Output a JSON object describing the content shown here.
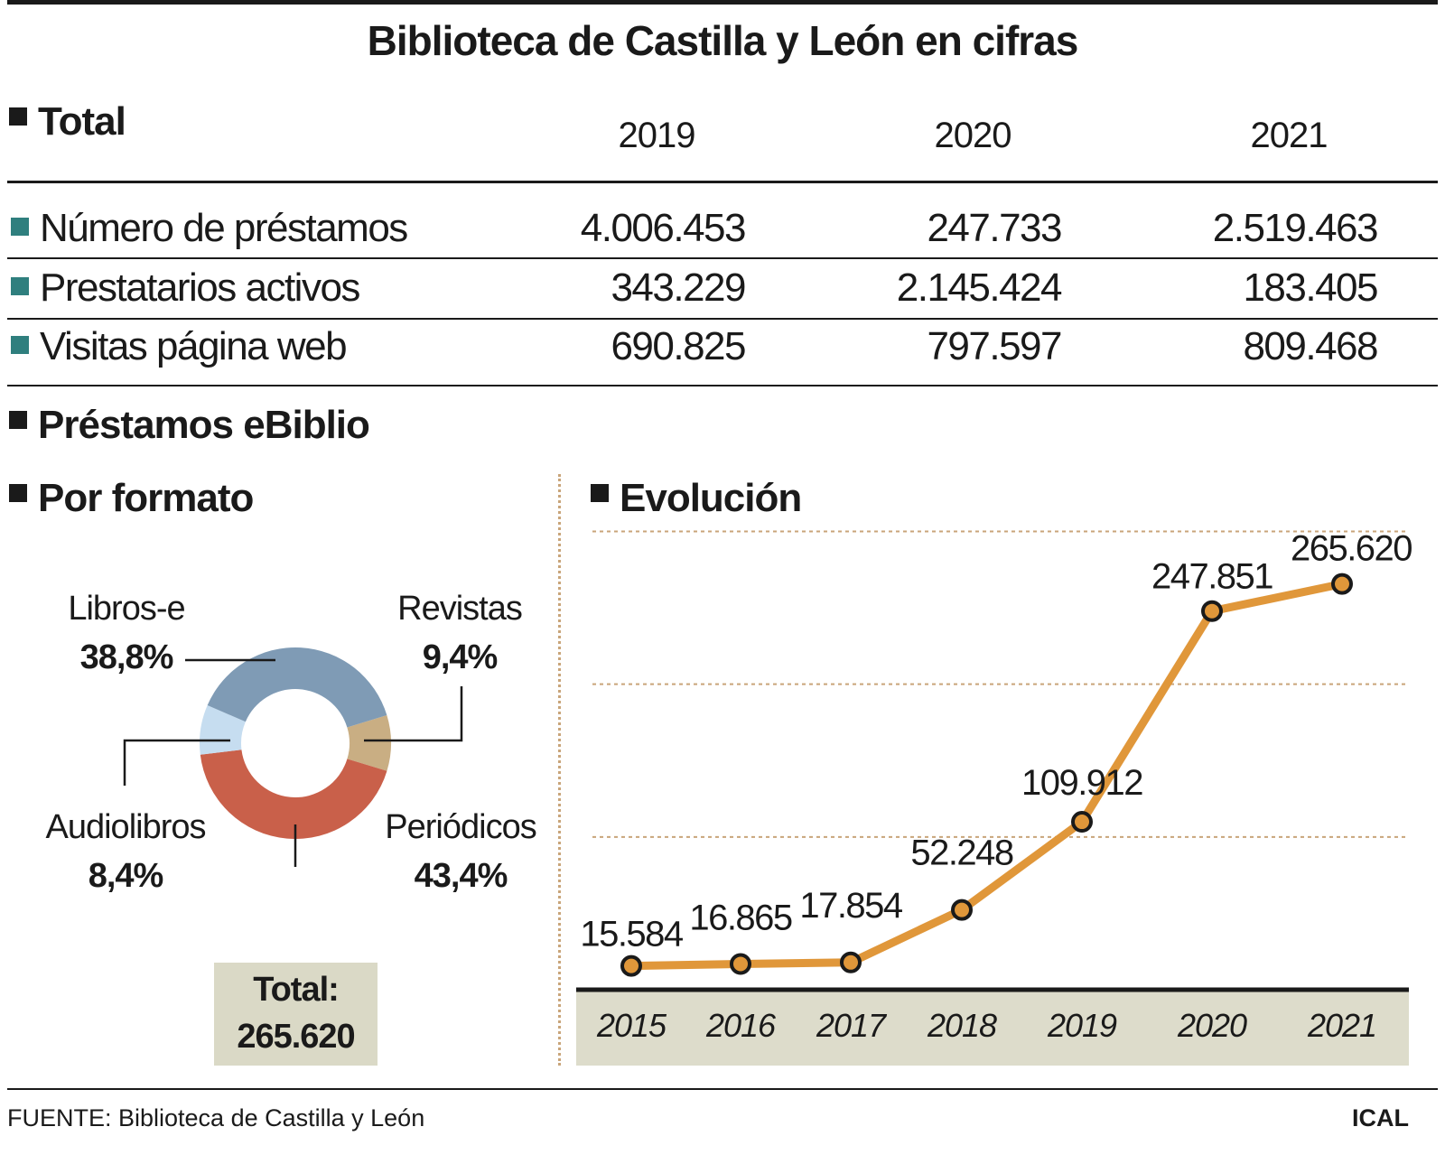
{
  "title": "Biblioteca de Castilla y León en cifras",
  "total_section": {
    "heading": "Total",
    "years": [
      "2019",
      "2020",
      "2021"
    ],
    "rows": [
      {
        "label": "Número de préstamos",
        "values": [
          "4.006.453",
          "247.733",
          "2.519.463"
        ]
      },
      {
        "label": "Prestatarios activos",
        "values": [
          "343.229",
          "2.145.424",
          "183.405"
        ]
      },
      {
        "label": "Visitas página web",
        "values": [
          "690.825",
          "797.597",
          "809.468"
        ]
      }
    ],
    "marker_color": "#2f7f7e"
  },
  "ebiblio_heading": "Préstamos eBiblio",
  "chart_data": [
    {
      "type": "pie",
      "donut": true,
      "title": "Por formato",
      "slices": [
        {
          "label": "Libros-e",
          "value": 38.8,
          "display": "38,8%",
          "color": "#7f9bb5"
        },
        {
          "label": "Revistas",
          "value": 9.4,
          "display": "9,4%",
          "color": "#c9ae83"
        },
        {
          "label": "Periódicos",
          "value": 43.4,
          "display": "43,4%",
          "color": "#c9604a"
        },
        {
          "label": "Audiolibros",
          "value": 8.4,
          "display": "8,4%",
          "color": "#c6ddf0"
        }
      ],
      "total_label": "Total:",
      "total_value": "265.620"
    },
    {
      "type": "line",
      "title": "Evolución",
      "x": [
        "2015",
        "2016",
        "2017",
        "2018",
        "2019",
        "2020",
        "2021"
      ],
      "values": [
        15584,
        16865,
        17854,
        52248,
        109912,
        247851,
        265620
      ],
      "labels": [
        "15.584",
        "16.865",
        "17.854",
        "52.248",
        "109.912",
        "247.851",
        "265.620"
      ],
      "ylim": [
        0,
        300000
      ],
      "grid": true,
      "line_color": "#e0973a"
    }
  ],
  "footer": {
    "source": "FUENTE: Biblioteca de Castilla y León",
    "credit": "ICAL"
  }
}
